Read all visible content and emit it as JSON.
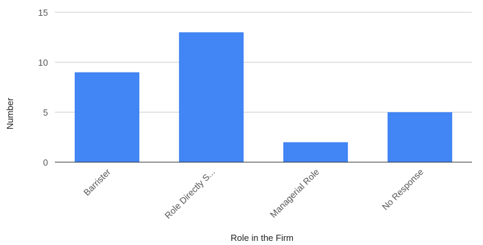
{
  "chart_data": {
    "type": "bar",
    "categories": [
      "Barrister",
      "Role Directly S...",
      "Managerial Role",
      "No Response"
    ],
    "values": [
      9,
      13,
      2,
      5
    ],
    "title": "",
    "xlabel": "Role in the Firm",
    "ylabel": "Number",
    "ylim": [
      0,
      15
    ],
    "yticks": [
      0,
      5,
      10,
      15
    ],
    "grid": true,
    "legend": "none",
    "bar_color": "#4285F4"
  }
}
